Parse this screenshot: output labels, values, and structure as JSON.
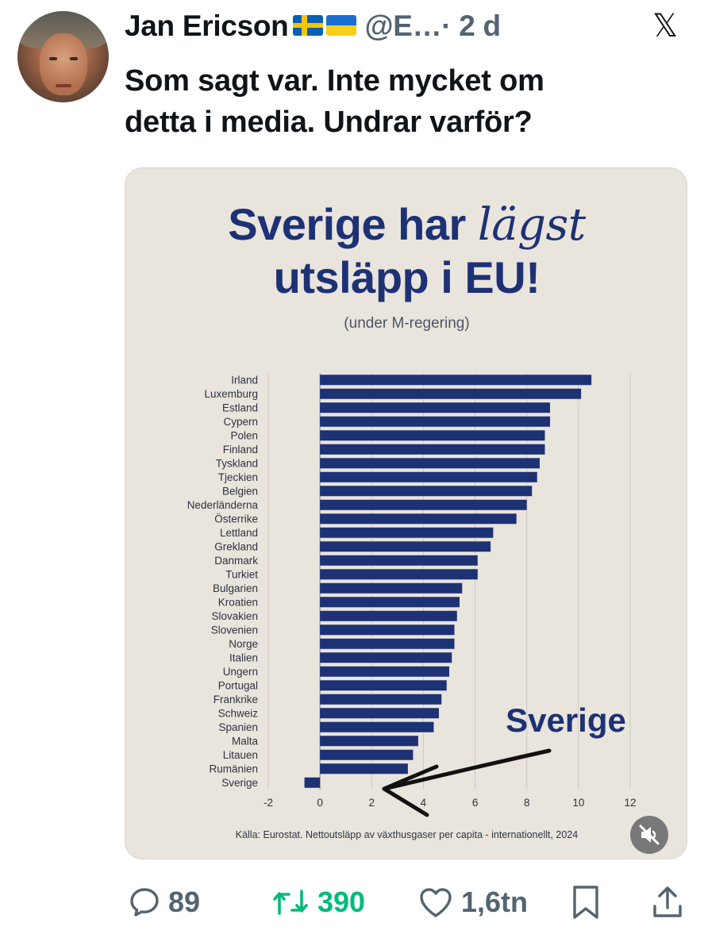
{
  "tweet": {
    "author_name": "Jan Ericson",
    "handle": "@E…",
    "time": "· 2 d",
    "text_line1": "Som sagt var. Inte mycket om",
    "text_line2": "detta i media. Undrar varför?"
  },
  "media": {
    "headline_part1": "Sverige har",
    "headline_italic": "lägst",
    "headline_line2": "utsläpp i EU!",
    "subheadline": "(under M-regering)",
    "callout": "Sverige",
    "source": "Källa: Eurostat. Nettoutsläpp av växthusgaser per capita - internationellt, 2024"
  },
  "chart_data": {
    "type": "bar",
    "orientation": "horizontal",
    "categories": [
      "Irland",
      "Luxemburg",
      "Estland",
      "Cypern",
      "Polen",
      "Finland",
      "Tyskland",
      "Tjeckien",
      "Belgien",
      "Nederländerna",
      "Österrike",
      "Lettland",
      "Grekland",
      "Danmark",
      "Turkiet",
      "Bulgarien",
      "Kroatien",
      "Slovakien",
      "Slovenien",
      "Norge",
      "Italien",
      "Ungern",
      "Portugal",
      "Frankrike",
      "Schweiz",
      "Spanien",
      "Malta",
      "Litauen",
      "Rumänien",
      "Sverige"
    ],
    "values": [
      10.5,
      10.1,
      8.9,
      8.9,
      8.7,
      8.7,
      8.5,
      8.4,
      8.2,
      8.0,
      7.6,
      6.7,
      6.6,
      6.1,
      6.1,
      5.5,
      5.4,
      5.3,
      5.2,
      5.2,
      5.1,
      5.0,
      4.9,
      4.7,
      4.6,
      4.4,
      3.8,
      3.6,
      3.4,
      -0.6
    ],
    "xlim": [
      -2,
      12
    ],
    "xticks": [
      "-2",
      "0",
      "2",
      "4",
      "6",
      "8",
      "10",
      "12"
    ],
    "grid": true,
    "bar_color": "#1d3175"
  },
  "actions": {
    "replies": "89",
    "reposts": "390",
    "likes": "1,6tn"
  },
  "colors": {
    "text": "#0f1419",
    "muted": "#536471",
    "repost": "#00ba7c",
    "chart_navy": "#1d3175",
    "media_bg": "#e9e4dc"
  },
  "icons": [
    "x-logo-icon",
    "reply-icon",
    "repost-icon",
    "like-icon",
    "bookmark-icon",
    "share-icon",
    "mute-icon"
  ]
}
